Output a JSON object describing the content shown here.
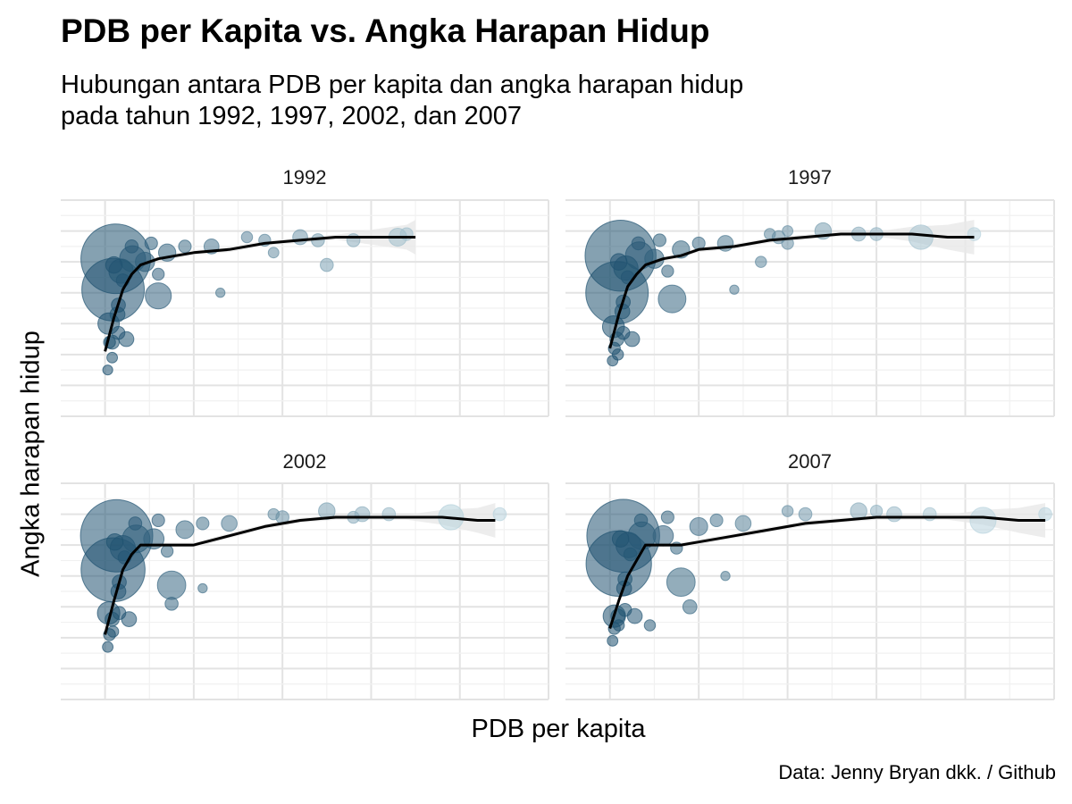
{
  "title": "PDB per Kapita vs. Angka Harapan Hidup",
  "subtitle_line1": "Hubungan antara PDB per kapita dan angka harapan hidup",
  "subtitle_line2": "pada tahun 1992, 1997, 2002, dan 2007",
  "caption": "Data: Jenny Bryan dkk. / Github",
  "chart_data": {
    "type": "scatter",
    "xlabel": "PDB per kapita",
    "ylabel": "Angka harapan hidup",
    "x_tick_labels_shown": false,
    "y_tick_labels_shown": false,
    "xlim": [
      -5000,
      50000
    ],
    "ylim": [
      20,
      90
    ],
    "grid": true,
    "legend": "none",
    "colors": {
      "point_dark": "#1c4f6e",
      "point_light": "#b9d4de",
      "smooth_line": "#000000",
      "ribbon": "#e8e8e8"
    },
    "point_encoding": "size = population, color = GDP per capita (darker = lower)",
    "facets": [
      {
        "label": "1992",
        "smooth": [
          [
            0,
            41
          ],
          [
            1000,
            52
          ],
          [
            2000,
            61
          ],
          [
            3000,
            66
          ],
          [
            4000,
            69
          ],
          [
            6000,
            71
          ],
          [
            8000,
            72
          ],
          [
            10000,
            73
          ],
          [
            14000,
            74
          ],
          [
            18000,
            76
          ],
          [
            22000,
            77
          ],
          [
            26000,
            78
          ],
          [
            30000,
            78
          ],
          [
            34000,
            78
          ],
          [
            35000,
            78
          ]
        ],
        "points": [
          [
            1200,
            71,
            1200
          ],
          [
            900,
            61,
            950
          ],
          [
            400,
            50,
            80
          ],
          [
            1800,
            67,
            110
          ],
          [
            3100,
            71,
            130
          ],
          [
            6000,
            59,
            130
          ],
          [
            4500,
            70,
            60
          ],
          [
            7000,
            73,
            45
          ],
          [
            12000,
            75,
            30
          ],
          [
            18000,
            77,
            15
          ],
          [
            22000,
            78,
            30
          ],
          [
            24000,
            77,
            20
          ],
          [
            25000,
            69,
            20
          ],
          [
            33000,
            78,
            50
          ],
          [
            34000,
            79,
            18
          ],
          [
            19000,
            73,
            10
          ],
          [
            13000,
            60,
            6
          ],
          [
            2400,
            45,
            30
          ],
          [
            1500,
            47,
            20
          ],
          [
            500,
            44,
            15
          ],
          [
            300,
            35,
            8
          ],
          [
            800,
            39,
            10
          ],
          [
            1500,
            56,
            25
          ],
          [
            2000,
            64,
            20
          ],
          [
            1000,
            69,
            40
          ],
          [
            5200,
            76,
            18
          ],
          [
            9000,
            75,
            18
          ],
          [
            16000,
            78,
            12
          ],
          [
            28000,
            77,
            20
          ],
          [
            3000,
            75,
            20
          ],
          [
            6000,
            66,
            15
          ],
          [
            800,
            44,
            25
          ],
          [
            1400,
            53,
            30
          ]
        ]
      },
      {
        "label": "1997",
        "smooth": [
          [
            0,
            42
          ],
          [
            1000,
            53
          ],
          [
            2000,
            62
          ],
          [
            3000,
            66
          ],
          [
            4000,
            69
          ],
          [
            6000,
            71
          ],
          [
            8000,
            72
          ],
          [
            10000,
            74
          ],
          [
            14000,
            75
          ],
          [
            18000,
            77
          ],
          [
            22000,
            78
          ],
          [
            26000,
            79
          ],
          [
            30000,
            79
          ],
          [
            34000,
            79
          ],
          [
            38000,
            78
          ],
          [
            41000,
            78
          ]
        ],
        "points": [
          [
            1200,
            72,
            1250
          ],
          [
            800,
            60,
            950
          ],
          [
            400,
            49,
            85
          ],
          [
            1800,
            68,
            110
          ],
          [
            3300,
            72,
            150
          ],
          [
            7000,
            58,
            150
          ],
          [
            5000,
            71,
            60
          ],
          [
            8000,
            74,
            45
          ],
          [
            13000,
            76,
            35
          ],
          [
            19000,
            78,
            20
          ],
          [
            24000,
            80,
            40
          ],
          [
            28000,
            79,
            25
          ],
          [
            35000,
            78,
            110
          ],
          [
            41000,
            79,
            20
          ],
          [
            20000,
            76,
            15
          ],
          [
            14000,
            61,
            6
          ],
          [
            2500,
            45,
            30
          ],
          [
            1500,
            47,
            20
          ],
          [
            500,
            42,
            15
          ],
          [
            300,
            38,
            10
          ],
          [
            900,
            40,
            12
          ],
          [
            1500,
            57,
            25
          ],
          [
            2000,
            65,
            20
          ],
          [
            1000,
            70,
            40
          ],
          [
            5600,
            77,
            18
          ],
          [
            10000,
            76,
            18
          ],
          [
            18000,
            79,
            12
          ],
          [
            30000,
            79,
            20
          ],
          [
            3200,
            76,
            20
          ],
          [
            6500,
            67,
            15
          ],
          [
            800,
            45,
            25
          ],
          [
            1400,
            54,
            30
          ],
          [
            17000,
            70,
            12
          ],
          [
            20000,
            80,
            10
          ]
        ]
      },
      {
        "label": "2002",
        "smooth": [
          [
            0,
            41
          ],
          [
            1000,
            52
          ],
          [
            2000,
            62
          ],
          [
            3000,
            67
          ],
          [
            4000,
            70
          ],
          [
            6000,
            70
          ],
          [
            8000,
            70
          ],
          [
            10000,
            70
          ],
          [
            14000,
            73
          ],
          [
            18000,
            76
          ],
          [
            22000,
            78
          ],
          [
            26000,
            79
          ],
          [
            30000,
            79
          ],
          [
            34000,
            79
          ],
          [
            38000,
            79
          ],
          [
            42000,
            78
          ],
          [
            44000,
            78
          ]
        ],
        "points": [
          [
            1300,
            73,
            1300
          ],
          [
            900,
            62,
            1000
          ],
          [
            400,
            48,
            90
          ],
          [
            2000,
            69,
            120
          ],
          [
            3500,
            72,
            150
          ],
          [
            7500,
            57,
            160
          ],
          [
            5500,
            72,
            70
          ],
          [
            9000,
            75,
            50
          ],
          [
            14000,
            77,
            35
          ],
          [
            20000,
            79,
            20
          ],
          [
            25000,
            81,
            40
          ],
          [
            29000,
            80,
            30
          ],
          [
            39000,
            79,
            120
          ],
          [
            44500,
            80,
            20
          ],
          [
            28000,
            79,
            15
          ],
          [
            11000,
            56,
            6
          ],
          [
            2700,
            46,
            30
          ],
          [
            1600,
            48,
            20
          ],
          [
            500,
            41,
            15
          ],
          [
            300,
            37,
            10
          ],
          [
            900,
            42,
            12
          ],
          [
            1600,
            58,
            25
          ],
          [
            2200,
            66,
            20
          ],
          [
            1100,
            71,
            40
          ],
          [
            6000,
            78,
            18
          ],
          [
            11000,
            77,
            18
          ],
          [
            19000,
            80,
            12
          ],
          [
            32000,
            80,
            20
          ],
          [
            3400,
            77,
            20
          ],
          [
            7000,
            68,
            15
          ],
          [
            800,
            46,
            25
          ],
          [
            1500,
            55,
            30
          ],
          [
            7500,
            51,
            20
          ]
        ]
      },
      {
        "label": "2007",
        "smooth": [
          [
            0,
            43
          ],
          [
            1000,
            52
          ],
          [
            2000,
            60
          ],
          [
            3000,
            65
          ],
          [
            4000,
            70
          ],
          [
            6000,
            70
          ],
          [
            8000,
            70
          ],
          [
            10000,
            71
          ],
          [
            14000,
            73
          ],
          [
            18000,
            75
          ],
          [
            22000,
            77
          ],
          [
            26000,
            78
          ],
          [
            30000,
            79
          ],
          [
            34000,
            79
          ],
          [
            38000,
            79
          ],
          [
            42000,
            79
          ],
          [
            46000,
            78
          ],
          [
            49000,
            78
          ]
        ],
        "points": [
          [
            1500,
            73,
            1320
          ],
          [
            1000,
            64,
            1050
          ],
          [
            500,
            47,
            90
          ],
          [
            2100,
            70,
            120
          ],
          [
            3600,
            73,
            150
          ],
          [
            8000,
            58,
            160
          ],
          [
            6000,
            73,
            70
          ],
          [
            10000,
            76,
            50
          ],
          [
            15000,
            77,
            35
          ],
          [
            22000,
            80,
            20
          ],
          [
            28000,
            81,
            40
          ],
          [
            32000,
            80,
            30
          ],
          [
            42000,
            78,
            130
          ],
          [
            49000,
            80,
            20
          ],
          [
            30000,
            81,
            15
          ],
          [
            13000,
            60,
            6
          ],
          [
            9000,
            50,
            25
          ],
          [
            2800,
            47,
            30
          ],
          [
            1700,
            49,
            20
          ],
          [
            500,
            43,
            15
          ],
          [
            300,
            39,
            10
          ],
          [
            1000,
            44,
            12
          ],
          [
            1700,
            59,
            25
          ],
          [
            2300,
            67,
            20
          ],
          [
            1200,
            72,
            40
          ],
          [
            6500,
            79,
            18
          ],
          [
            12000,
            78,
            18
          ],
          [
            20000,
            81,
            12
          ],
          [
            36000,
            80,
            20
          ],
          [
            3500,
            78,
            20
          ],
          [
            7500,
            69,
            15
          ],
          [
            900,
            47,
            25
          ],
          [
            1600,
            56,
            30
          ],
          [
            4500,
            44,
            12
          ]
        ]
      }
    ]
  }
}
